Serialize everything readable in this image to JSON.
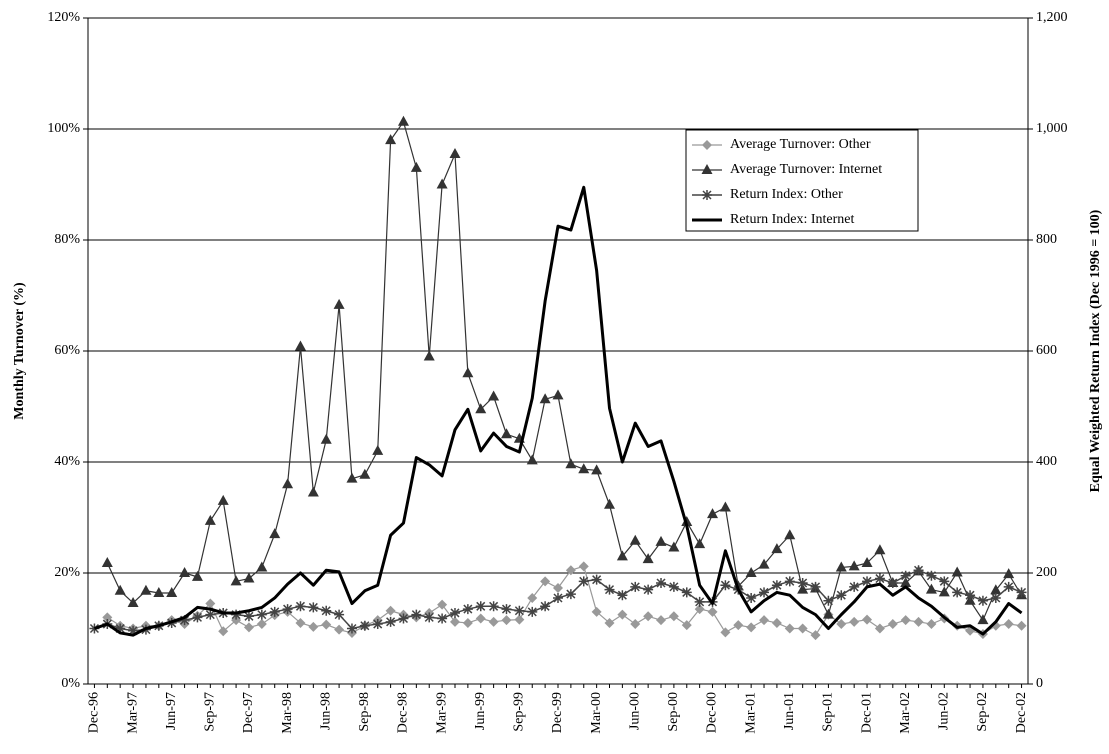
{
  "chart_data": {
    "type": "line",
    "y_label": "Monthly Turnover (%)",
    "y2_label": "Equal Weighted Return Index (Dec 1996 = 100)",
    "categories": [
      "Dec-96",
      null,
      null,
      "Mar-97",
      null,
      null,
      "Jun-97",
      null,
      null,
      "Sep-97",
      null,
      null,
      "Dec-97",
      null,
      null,
      "Mar-98",
      null,
      null,
      "Jun-98",
      null,
      null,
      "Sep-98",
      null,
      null,
      "Dec-98",
      null,
      null,
      "Mar-99",
      null,
      null,
      "Jun-99",
      null,
      null,
      "Sep-99",
      null,
      null,
      "Dec-99",
      null,
      null,
      "Mar-00",
      null,
      null,
      "Jun-00",
      null,
      null,
      "Sep-00",
      null,
      null,
      "Dec-00",
      null,
      null,
      "Mar-01",
      null,
      null,
      "Jun-01",
      null,
      null,
      "Sep-01",
      null,
      null,
      "Dec-01",
      null,
      null,
      "Mar-02",
      null,
      null,
      "Jun-02",
      null,
      null,
      "Sep-02",
      null,
      null,
      "Dec-02"
    ],
    "ylim": [
      0,
      120
    ],
    "yticks": [
      {
        "value": 0,
        "label": "0%"
      },
      {
        "value": 20,
        "label": "20%"
      },
      {
        "value": 40,
        "label": "40%"
      },
      {
        "value": 60,
        "label": "60%"
      },
      {
        "value": 80,
        "label": "80%"
      },
      {
        "value": 100,
        "label": "100%"
      },
      {
        "value": 120,
        "label": "120%"
      }
    ],
    "y2lim": [
      0,
      1200
    ],
    "y2ticks": [
      0,
      200,
      400,
      600,
      800,
      {
        "value": 1000,
        "label": "1,000"
      },
      {
        "value": 1200,
        "label": "1,200"
      }
    ],
    "grid": true,
    "series": [
      {
        "name": "Average Turnover: Other",
        "color": "#999999",
        "marker": "diamond",
        "width": 1.2,
        "values": [
          null,
          12,
          10.5,
          10,
          10.5,
          10.5,
          11.5,
          10.8,
          12.3,
          14.5,
          9.5,
          11.5,
          10.2,
          10.8,
          12.4,
          13,
          11,
          10.3,
          10.7,
          9.8,
          9.2,
          10.5,
          11.5,
          13.2,
          12.5,
          12,
          12.8,
          14.3,
          11.2,
          11,
          11.8,
          11.2,
          11.5,
          11.6,
          15.5,
          18.5,
          17.3,
          20.5,
          21.2,
          13,
          11,
          12.5,
          10.8,
          12.2,
          11.5,
          12.2,
          10.6,
          13.5,
          13,
          9.3,
          10.6,
          10.2,
          11.5,
          11,
          10,
          10,
          8.8,
          12.5,
          10.8,
          11.2,
          11.6,
          10,
          10.8,
          11.5,
          11.2,
          10.8,
          11.8,
          10.5,
          9.6,
          9,
          10.5,
          10.8,
          10.5
        ]
      },
      {
        "name": "Average Turnover: Internet",
        "color": "#333333",
        "marker": "triangle",
        "width": 1.2,
        "values": [
          null,
          21.8,
          16.8,
          14.6,
          16.8,
          16.4,
          16.4,
          20,
          19.3,
          29.4,
          33,
          18.5,
          19,
          21,
          27,
          36,
          60.8,
          34.5,
          44,
          68.3,
          37,
          37.7,
          42,
          98,
          101.3,
          93,
          59,
          90,
          95.5,
          56,
          49.5,
          51.8,
          45,
          44.2,
          40.3,
          51.3,
          52,
          39.6,
          38.7,
          38.5,
          32.3,
          23,
          25.8,
          22.5,
          25.6,
          24.6,
          29.2,
          25.2,
          30.6,
          31.8,
          17.6,
          20,
          21.5,
          24.3,
          26.8,
          17,
          17.2,
          12.5,
          21,
          21.2,
          21.8,
          24.1,
          18.2,
          18.2,
          20.3,
          17,
          16.5,
          20.1,
          15,
          11.5,
          16.9,
          19.8,
          16
        ]
      },
      {
        "name": "Return Index: Other",
        "color": "#444444",
        "marker": "star",
        "width": 1.5,
        "axis": "y2",
        "values": [
          100,
          108,
          100,
          96,
          98,
          105,
          110,
          115,
          120,
          125,
          128,
          125,
          122,
          125,
          130,
          135,
          140,
          138,
          132,
          125,
          100,
          105,
          108,
          112,
          118,
          125,
          120,
          118,
          128,
          135,
          140,
          140,
          135,
          132,
          130,
          140,
          155,
          162,
          185,
          188,
          170,
          160,
          175,
          170,
          182,
          175,
          165,
          148,
          148,
          178,
          170,
          155,
          165,
          178,
          185,
          182,
          175,
          150,
          160,
          175,
          185,
          190,
          182,
          195,
          205,
          195,
          185,
          165,
          160,
          150,
          155,
          175,
          165
        ]
      },
      {
        "name": "Return Index: Internet",
        "color": "#000000",
        "marker": "none",
        "width": 3,
        "axis": "y2",
        "values": [
          100,
          108,
          92,
          88,
          100,
          105,
          112,
          120,
          138,
          135,
          128,
          128,
          132,
          138,
          155,
          180,
          200,
          178,
          205,
          202,
          145,
          168,
          178,
          268,
          290,
          408,
          395,
          375,
          458,
          495,
          420,
          452,
          428,
          418,
          515,
          690,
          825,
          818,
          895,
          745,
          497,
          400,
          470,
          428,
          438,
          365,
          285,
          178,
          145,
          240,
          170,
          130,
          150,
          165,
          160,
          138,
          125,
          100,
          125,
          148,
          175,
          180,
          160,
          175,
          155,
          140,
          120,
          102,
          105,
          90,
          112,
          145,
          128
        ]
      }
    ]
  }
}
